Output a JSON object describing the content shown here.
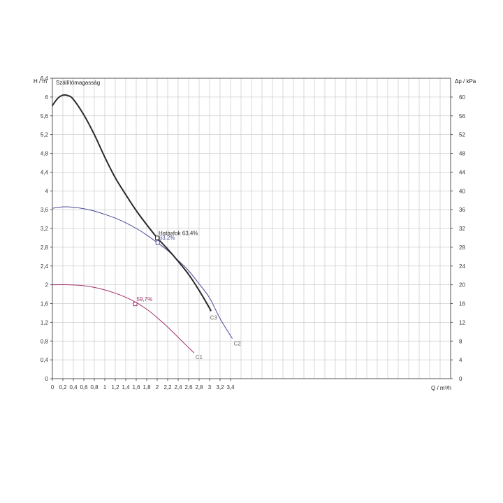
{
  "chart_data": {
    "type": "line",
    "title": "Szállítómagasság",
    "ylabel": "H / m",
    "y2label": "Δp / kPa",
    "xlabel": "Q / m³/h",
    "xlim": [
      0,
      3.8
    ],
    "ylim": [
      0,
      6.4
    ],
    "y2lim": [
      0,
      64
    ],
    "grid": true,
    "x_ticks": [
      "0",
      "0,2",
      "0,4",
      "0,6",
      "0,8",
      "1",
      "1,2",
      "1,4",
      "1,6",
      "1,8",
      "2",
      "2,2",
      "2,4",
      "2,6",
      "2,8",
      "3",
      "3,2",
      "3,4"
    ],
    "y_ticks": [
      "0",
      "0,4",
      "0,8",
      "1,2",
      "1,6",
      "2",
      "2,4",
      "2,8",
      "3,2",
      "3,6",
      "4",
      "4,4",
      "4,8",
      "5,2",
      "5,6",
      "6",
      "6,4"
    ],
    "y2_ticks": [
      "0",
      "4",
      "8",
      "12",
      "16",
      "20",
      "24",
      "28",
      "32",
      "36",
      "40",
      "44",
      "48",
      "52",
      "56",
      "60"
    ],
    "series": [
      {
        "name": "C1",
        "color": "#a0306a",
        "x": [
          0,
          0.3,
          0.6,
          0.9,
          1.2,
          1.5,
          1.8,
          2.0,
          2.2,
          2.4,
          2.6,
          2.7
        ],
        "y": [
          2.0,
          2.0,
          1.98,
          1.92,
          1.82,
          1.68,
          1.48,
          1.3,
          1.1,
          0.88,
          0.66,
          0.55
        ]
      },
      {
        "name": "C2",
        "color": "#4a4a9a",
        "x": [
          0,
          0.2,
          0.4,
          0.6,
          0.8,
          1.0,
          1.2,
          1.4,
          1.6,
          1.8,
          2.0,
          2.2,
          2.4,
          2.6,
          2.8,
          3.0,
          3.2,
          3.43
        ],
        "y": [
          3.63,
          3.66,
          3.65,
          3.62,
          3.57,
          3.5,
          3.42,
          3.32,
          3.2,
          3.06,
          2.9,
          2.73,
          2.52,
          2.3,
          2.02,
          1.72,
          1.28,
          0.86
        ]
      },
      {
        "name": "C3",
        "color": "#2a2a2a",
        "x": [
          0,
          0.1,
          0.2,
          0.3,
          0.4,
          0.6,
          0.8,
          1.0,
          1.2,
          1.4,
          1.6,
          1.8,
          2.0,
          2.2,
          2.4,
          2.6,
          2.8,
          3.0,
          3.02
        ],
        "y": [
          5.82,
          5.97,
          6.04,
          6.03,
          5.95,
          5.62,
          5.2,
          4.72,
          4.28,
          3.92,
          3.58,
          3.28,
          3.0,
          2.76,
          2.5,
          2.22,
          1.88,
          1.5,
          1.45
        ]
      }
    ],
    "points": [
      {
        "series": "C1",
        "x": 1.58,
        "y": 1.59,
        "label": "59,7%",
        "color": "#a0306a"
      },
      {
        "series": "C2",
        "x": 2.01,
        "y": 2.9,
        "label": "63,2%",
        "color": "#4a4a9a"
      },
      {
        "series": "C3",
        "x": 2.0,
        "y": 3.0,
        "label": "Hatásfok  63,4%",
        "color": "#2a2a2a"
      }
    ],
    "curve_labels": [
      {
        "text": "C1",
        "x": 2.73,
        "y": 0.46
      },
      {
        "text": "C2",
        "x": 3.46,
        "y": 0.75
      },
      {
        "text": "C3",
        "x": 3.01,
        "y": 1.3
      }
    ]
  }
}
